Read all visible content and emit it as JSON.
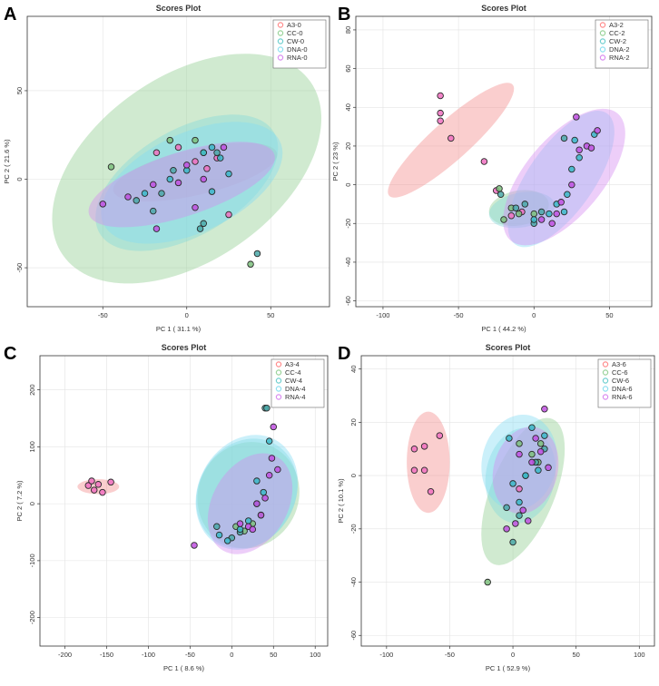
{
  "figure": {
    "background": "#ffffff",
    "series_colors": {
      "A3": "#ff8c8c",
      "CC": "#9ad39a",
      "CW": "#6fcfcf",
      "DNA": "#8ee0f0",
      "RNA": "#d98cf0"
    },
    "ellipse_colors": {
      "A3": "#f28b8b",
      "CC": "#8fce8f",
      "CW": "#83d8d8",
      "DNA": "#82dcf2",
      "RNA": "#d38bf0"
    },
    "point_fill": {
      "A3": "#f070c0",
      "CC": "#7cbf7c",
      "CW": "#4aa8a8",
      "DNA": "#3ab8c8",
      "RNA": "#c050e0"
    }
  },
  "chart_data": [
    {
      "type": "scatter",
      "panel_label": "A",
      "title": "Scores Plot",
      "xlabel": "PC 1 ( 31.1 %)",
      "ylabel": "PC 2 ( 21.6 %)",
      "xlim": [
        -95,
        85
      ],
      "ylim": [
        -72,
        92
      ],
      "xticks": [
        -50,
        0,
        50
      ],
      "yticks": [
        -50,
        0,
        50
      ],
      "grid": true,
      "legend_position": "top-right",
      "series": [
        {
          "name": "A3-0",
          "key": "A3",
          "points": [
            [
              -18,
              15
            ],
            [
              -5,
              18
            ],
            [
              5,
              10
            ],
            [
              12,
              6
            ],
            [
              18,
              12
            ],
            [
              25,
              -20
            ]
          ],
          "ellipse": {
            "cx": 5,
            "cy": 4,
            "rx": 50,
            "ry": 13,
            "angle": -13
          }
        },
        {
          "name": "CC-0",
          "key": "CC",
          "points": [
            [
              -45,
              7
            ],
            [
              -10,
              22
            ],
            [
              5,
              22
            ],
            [
              38,
              -48
            ],
            [
              10,
              15
            ]
          ],
          "ellipse": {
            "cx": 0,
            "cy": 6,
            "rx": 90,
            "ry": 52,
            "angle": -35
          }
        },
        {
          "name": "CW-0",
          "key": "CW",
          "points": [
            [
              -30,
              -12
            ],
            [
              -20,
              -18
            ],
            [
              -15,
              -8
            ],
            [
              10,
              -25
            ],
            [
              8,
              -28
            ],
            [
              42,
              -42
            ],
            [
              18,
              15
            ],
            [
              -8,
              5
            ]
          ],
          "ellipse": {
            "cx": 0,
            "cy": -2,
            "rx": 60,
            "ry": 30,
            "angle": -30
          }
        },
        {
          "name": "DNA-0",
          "key": "DNA",
          "points": [
            [
              -25,
              -8
            ],
            [
              -10,
              0
            ],
            [
              0,
              5
            ],
            [
              10,
              15
            ],
            [
              15,
              18
            ],
            [
              20,
              12
            ],
            [
              25,
              3
            ],
            [
              15,
              -7
            ]
          ],
          "ellipse": {
            "cx": 3,
            "cy": -2,
            "rx": 58,
            "ry": 28,
            "angle": -25
          }
        },
        {
          "name": "RNA-0",
          "key": "RNA",
          "points": [
            [
              -50,
              -14
            ],
            [
              -35,
              -10
            ],
            [
              -20,
              -3
            ],
            [
              -18,
              -28
            ],
            [
              -5,
              -2
            ],
            [
              0,
              8
            ],
            [
              10,
              0
            ],
            [
              22,
              18
            ],
            [
              5,
              -16
            ]
          ],
          "ellipse": {
            "cx": -3,
            "cy": -3,
            "rx": 58,
            "ry": 18,
            "angle": -18
          }
        }
      ]
    },
    {
      "type": "scatter",
      "panel_label": "B",
      "title": "Scores Plot",
      "xlabel": "PC 1 ( 44.2 %)",
      "ylabel": "PC 2 ( 23 %)",
      "xlim": [
        -118,
        78
      ],
      "ylim": [
        -63,
        87
      ],
      "xticks": [
        -100,
        -50,
        0,
        50
      ],
      "yticks": [
        -60,
        -40,
        -20,
        0,
        20,
        40,
        60,
        80
      ],
      "grid": true,
      "legend_position": "top-right",
      "series": [
        {
          "name": "A3-2",
          "key": "A3",
          "points": [
            [
              -62,
              46
            ],
            [
              -62,
              37
            ],
            [
              -62,
              33
            ],
            [
              -55,
              24
            ],
            [
              -33,
              12
            ],
            [
              -25,
              -3
            ],
            [
              -15,
              -16
            ],
            [
              -8,
              -14
            ]
          ],
          "ellipse": {
            "cx": -55,
            "cy": 23,
            "rx": 55,
            "ry": 10,
            "angle": -42
          }
        },
        {
          "name": "CC-2",
          "key": "CC",
          "points": [
            [
              -23,
              -2
            ],
            [
              -20,
              -18
            ],
            [
              -15,
              -12
            ],
            [
              -10,
              -15
            ],
            [
              0,
              -15
            ]
          ],
          "ellipse": {
            "cx": -10,
            "cy": -12,
            "rx": 20,
            "ry": 9,
            "angle": -10
          }
        },
        {
          "name": "CW-2",
          "key": "CW",
          "points": [
            [
              -22,
              -5
            ],
            [
              -12,
              -12
            ],
            [
              -6,
              -10
            ],
            [
              0,
              -20
            ],
            [
              5,
              -14
            ],
            [
              20,
              24
            ]
          ],
          "ellipse": {
            "cx": -8,
            "cy": -13,
            "rx": 22,
            "ry": 9,
            "angle": -10
          }
        },
        {
          "name": "DNA-2",
          "key": "DNA",
          "points": [
            [
              0,
              -18
            ],
            [
              10,
              -15
            ],
            [
              15,
              -10
            ],
            [
              20,
              -14
            ],
            [
              25,
              8
            ],
            [
              27,
              23
            ],
            [
              30,
              14
            ],
            [
              40,
              26
            ],
            [
              22,
              -5
            ]
          ],
          "ellipse": {
            "cx": 18,
            "cy": 3,
            "rx": 53,
            "ry": 17,
            "angle": -55
          }
        },
        {
          "name": "RNA-2",
          "key": "RNA",
          "points": [
            [
              5,
              -18
            ],
            [
              12,
              -20
            ],
            [
              18,
              -9
            ],
            [
              28,
              35
            ],
            [
              30,
              18
            ],
            [
              35,
              20
            ],
            [
              38,
              19
            ],
            [
              42,
              28
            ],
            [
              25,
              0
            ],
            [
              15,
              -15
            ]
          ],
          "ellipse": {
            "cx": 20,
            "cy": 4,
            "rx": 55,
            "ry": 20,
            "angle": -50
          }
        }
      ]
    },
    {
      "type": "scatter",
      "panel_label": "C",
      "title": "Scores Plot",
      "xlabel": "PC 1 ( 8.6 %)",
      "ylabel": "PC 2 ( 7.2 %)",
      "xlim": [
        -230,
        115
      ],
      "ylim": [
        -250,
        260
      ],
      "xticks": [
        -200,
        -150,
        -100,
        -50,
        0,
        50,
        100
      ],
      "yticks": [
        -200,
        -100,
        0,
        100,
        200
      ],
      "grid": true,
      "legend_position": "top-right",
      "series": [
        {
          "name": "A3-4",
          "key": "A3",
          "points": [
            [
              -172,
              32
            ],
            [
              -168,
              40
            ],
            [
              -165,
              24
            ],
            [
              -155,
              20
            ],
            [
              -145,
              38
            ],
            [
              -160,
              34
            ]
          ],
          "ellipse": {
            "cx": -160,
            "cy": 30,
            "rx": 25,
            "ry": 13,
            "angle": 0
          }
        },
        {
          "name": "CC-4",
          "key": "CC",
          "points": [
            [
              5,
              -40
            ],
            [
              15,
              -48
            ],
            [
              25,
              -35
            ],
            [
              35,
              -20
            ]
          ],
          "ellipse": {
            "cx": 20,
            "cy": 15,
            "rx": 60,
            "ry": 95,
            "angle": 28
          }
        },
        {
          "name": "CW-4",
          "key": "CW",
          "points": [
            [
              -18,
              -40
            ],
            [
              0,
              -60
            ],
            [
              10,
              -50
            ],
            [
              40,
              168
            ],
            [
              42,
              168
            ],
            [
              30,
              0
            ]
          ],
          "ellipse": {
            "cx": 18,
            "cy": 18,
            "rx": 58,
            "ry": 100,
            "angle": 30
          }
        },
        {
          "name": "DNA-4",
          "key": "DNA",
          "points": [
            [
              -15,
              -55
            ],
            [
              -5,
              -65
            ],
            [
              10,
              -45
            ],
            [
              20,
              -30
            ],
            [
              30,
              40
            ],
            [
              45,
              110
            ],
            [
              38,
              20
            ]
          ],
          "ellipse": {
            "cx": 18,
            "cy": 20,
            "rx": 58,
            "ry": 105,
            "angle": 28
          }
        },
        {
          "name": "RNA-4",
          "key": "RNA",
          "points": [
            [
              -45,
              -73
            ],
            [
              10,
              -35
            ],
            [
              20,
              -40
            ],
            [
              30,
              0
            ],
            [
              40,
              10
            ],
            [
              45,
              50
            ],
            [
              48,
              80
            ],
            [
              50,
              135
            ],
            [
              55,
              60
            ],
            [
              25,
              -45
            ],
            [
              35,
              -20
            ]
          ],
          "ellipse": {
            "cx": 22,
            "cy": 0,
            "rx": 45,
            "ry": 95,
            "angle": 30
          }
        }
      ]
    },
    {
      "type": "scatter",
      "panel_label": "D",
      "title": "Scores Plot",
      "xlabel": "PC 1 ( 52.9 %)",
      "ylabel": "PC 2 ( 10.1 %)",
      "xlim": [
        -120,
        112
      ],
      "ylim": [
        -64,
        45
      ],
      "xticks": [
        -100,
        -50,
        0,
        50,
        100
      ],
      "yticks": [
        -60,
        -40,
        -20,
        0,
        20,
        40
      ],
      "grid": true,
      "legend_position": "top-right",
      "series": [
        {
          "name": "A3-6",
          "key": "A3",
          "points": [
            [
              -78,
              10
            ],
            [
              -70,
              11
            ],
            [
              -58,
              15
            ],
            [
              -70,
              2
            ],
            [
              -78,
              2
            ],
            [
              -65,
              -6
            ],
            [
              5,
              -5
            ]
          ],
          "ellipse": {
            "cx": -67,
            "cy": 5,
            "rx": 17,
            "ry": 19,
            "angle": 0
          }
        },
        {
          "name": "CC-6",
          "key": "CC",
          "points": [
            [
              -20,
              -40
            ],
            [
              5,
              12
            ],
            [
              15,
              8
            ],
            [
              20,
              5
            ],
            [
              22,
              12
            ]
          ],
          "ellipse": {
            "cx": 8,
            "cy": -6,
            "rx": 62,
            "ry": 12,
            "angle": -68
          }
        },
        {
          "name": "CW-6",
          "key": "CW",
          "points": [
            [
              -5,
              -12
            ],
            [
              0,
              -25
            ],
            [
              5,
              -15
            ],
            [
              10,
              0
            ],
            [
              18,
              5
            ],
            [
              25,
              10
            ]
          ],
          "ellipse": {
            "cx": 6,
            "cy": 0,
            "rx": 38,
            "ry": 13,
            "angle": -80
          }
        },
        {
          "name": "DNA-6",
          "key": "DNA",
          "points": [
            [
              -3,
              14
            ],
            [
              0,
              -3
            ],
            [
              5,
              -10
            ],
            [
              10,
              0
            ],
            [
              15,
              18
            ],
            [
              20,
              2
            ],
            [
              25,
              15
            ]
          ],
          "ellipse": {
            "cx": 5,
            "cy": 5,
            "rx": 38,
            "ry": 14,
            "angle": -78
          }
        },
        {
          "name": "RNA-6",
          "key": "RNA",
          "points": [
            [
              -5,
              -20
            ],
            [
              2,
              -18
            ],
            [
              8,
              -13
            ],
            [
              12,
              -17
            ],
            [
              15,
              5
            ],
            [
              18,
              14
            ],
            [
              22,
              9
            ],
            [
              28,
              3
            ],
            [
              25,
              25
            ],
            [
              5,
              8
            ]
          ],
          "ellipse": {
            "cx": 10,
            "cy": 2,
            "rx": 35,
            "ry": 12,
            "angle": -75
          }
        }
      ]
    }
  ]
}
